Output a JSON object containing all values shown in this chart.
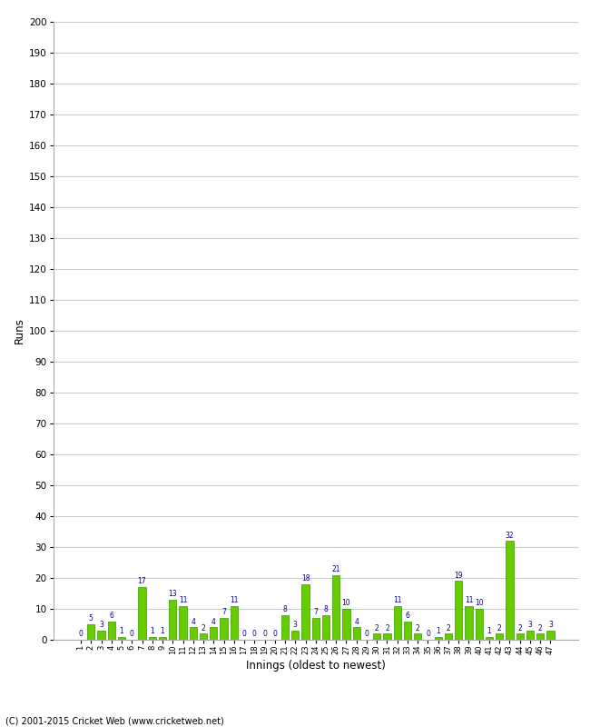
{
  "xlabel": "Innings (oldest to newest)",
  "ylabel": "Runs",
  "ylim": [
    0,
    200
  ],
  "yticks": [
    0,
    10,
    20,
    30,
    40,
    50,
    60,
    70,
    80,
    90,
    100,
    110,
    120,
    130,
    140,
    150,
    160,
    170,
    180,
    190,
    200
  ],
  "innings": [
    1,
    2,
    3,
    4,
    5,
    6,
    7,
    8,
    9,
    10,
    11,
    12,
    13,
    14,
    15,
    16,
    17,
    18,
    19,
    20,
    21,
    22,
    23,
    24,
    25,
    26,
    27,
    28,
    29,
    30,
    31,
    32,
    33,
    34,
    35,
    36,
    37,
    38,
    39,
    40,
    41,
    42,
    43,
    44,
    45,
    46,
    47
  ],
  "values": [
    0,
    5,
    3,
    6,
    1,
    0,
    17,
    1,
    1,
    13,
    11,
    4,
    2,
    4,
    7,
    11,
    0,
    0,
    0,
    0,
    8,
    3,
    18,
    7,
    8,
    21,
    10,
    4,
    0,
    2,
    2,
    11,
    6,
    2,
    0,
    1,
    2,
    19,
    11,
    10,
    1,
    2,
    32,
    2,
    3,
    2,
    3
  ],
  "bar_color": "#66cc00",
  "bar_edge_color": "#339900",
  "label_color": "#000099",
  "background_color": "#ffffff",
  "grid_color": "#cccccc",
  "footer": "(C) 2001-2015 Cricket Web (www.cricketweb.net)"
}
